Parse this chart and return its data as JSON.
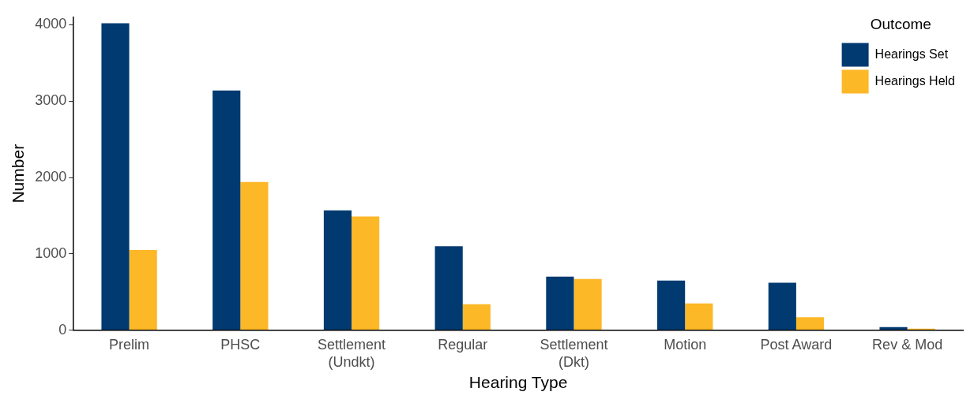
{
  "chart_data": {
    "type": "bar",
    "xlabel": "Hearing Type",
    "ylabel": "Number",
    "legend_title": "Outcome",
    "legend": "top right",
    "grid": false,
    "categories": [
      "Prelim",
      "PHSC",
      "Settlement\n(Undkt)",
      "Regular",
      "Settlement\n(Dkt)",
      "Motion",
      "Post Award",
      "Rev & Mod"
    ],
    "ylim": [
      0,
      4100
    ],
    "yticks": [
      0,
      1000,
      2000,
      3000,
      4000
    ],
    "series": [
      {
        "name": "Hearings Set",
        "color": "#003a70",
        "values": [
          4020,
          3140,
          1570,
          1100,
          700,
          650,
          620,
          40
        ]
      },
      {
        "name": "Hearings Held",
        "color": "#fdb827",
        "values": [
          1050,
          1940,
          1490,
          340,
          670,
          350,
          170,
          20
        ]
      }
    ]
  }
}
